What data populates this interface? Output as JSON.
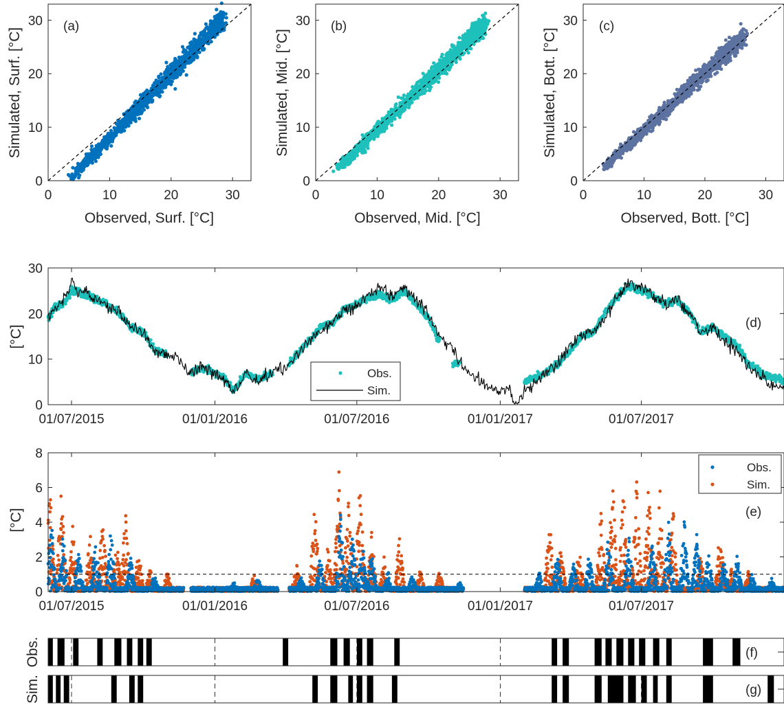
{
  "colors": {
    "surf": "#0072bd",
    "mid": "#1ec0bb",
    "bott": "#5c72a0",
    "obs_blue": "#0072bd",
    "sim_orange": "#d95319",
    "sim_line": "#000000",
    "axis": "#262626"
  },
  "chart_data": [
    {
      "id": "a",
      "type": "scatter",
      "panel_label": "(a)",
      "xlabel": "Observed, Surf. [°C]",
      "ylabel": "Simulated, Surf. [°C]",
      "xlim": [
        0,
        33
      ],
      "ylim": [
        0,
        33
      ],
      "xticks": [
        "0",
        "10",
        "20",
        "30"
      ],
      "yticks": [
        "0",
        "10",
        "20",
        "30"
      ],
      "reference_line": "1:1 dashed",
      "cloud": {
        "x_start": 3.5,
        "x_end": 28.7,
        "y_start": 0.3,
        "y_end": 30.5,
        "spread_low": 1.2,
        "spread_high": 3.0
      }
    },
    {
      "id": "b",
      "type": "scatter",
      "panel_label": "(b)",
      "xlabel": "Observed, Mid. [°C]",
      "ylabel": "Simulated, Mid. [°C]",
      "xlim": [
        0,
        33
      ],
      "ylim": [
        0,
        33
      ],
      "xticks": [
        "0",
        "10",
        "20",
        "30"
      ],
      "yticks": [
        "0",
        "10",
        "20",
        "30"
      ],
      "reference_line": "1:1 dashed",
      "cloud": {
        "x_start": 3.5,
        "x_end": 27.8,
        "y_start": 2.0,
        "y_end": 29.5,
        "spread_low": 1.2,
        "spread_high": 2.8
      }
    },
    {
      "id": "c",
      "type": "scatter",
      "panel_label": "(c)",
      "xlabel": "Observed, Bott. [°C]",
      "ylabel": "Simulated, Bott. [°C]",
      "xlim": [
        0,
        33
      ],
      "ylim": [
        0,
        33
      ],
      "xticks": [
        "0",
        "10",
        "20",
        "30"
      ],
      "yticks": [
        "0",
        "10",
        "20",
        "30"
      ],
      "reference_line": "1:1 dashed",
      "cloud": {
        "x_start": 3.5,
        "x_end": 26.5,
        "y_start": 2.5,
        "y_end": 27.0,
        "spread_low": 1.0,
        "spread_high": 2.5
      }
    },
    {
      "id": "d",
      "type": "line",
      "panel_label": "(d)",
      "ylabel": "[°C]",
      "ylim": [
        0,
        30
      ],
      "yticks": [
        "0",
        "10",
        "20",
        "30"
      ],
      "x_range": [
        "2015-06-01",
        "2017-12-31"
      ],
      "xticks": [
        "01/07/2015",
        "01/01/2016",
        "01/07/2016",
        "01/01/2017",
        "01/07/2017"
      ],
      "legend": [
        "Obs.",
        "Sim."
      ],
      "sim": [
        [
          "2015-06-01",
          19
        ],
        [
          "2015-06-10",
          21
        ],
        [
          "2015-06-20",
          23
        ],
        [
          "2015-07-01",
          27
        ],
        [
          "2015-07-10",
          25
        ],
        [
          "2015-07-20",
          25
        ],
        [
          "2015-08-01",
          23
        ],
        [
          "2015-08-15",
          22
        ],
        [
          "2015-09-01",
          20
        ],
        [
          "2015-09-15",
          17
        ],
        [
          "2015-10-01",
          16
        ],
        [
          "2015-10-15",
          12
        ],
        [
          "2015-11-01",
          11
        ],
        [
          "2015-11-15",
          10
        ],
        [
          "2015-12-01",
          7
        ],
        [
          "2015-12-15",
          8
        ],
        [
          "2016-01-01",
          7
        ],
        [
          "2016-01-15",
          5
        ],
        [
          "2016-01-25",
          2.5
        ],
        [
          "2016-02-10",
          7
        ],
        [
          "2016-02-25",
          5
        ],
        [
          "2016-03-15",
          7
        ],
        [
          "2016-04-01",
          8
        ],
        [
          "2016-04-15",
          11
        ],
        [
          "2016-05-01",
          14
        ],
        [
          "2016-05-15",
          16
        ],
        [
          "2016-06-01",
          18
        ],
        [
          "2016-06-15",
          21
        ],
        [
          "2016-07-01",
          22
        ],
        [
          "2016-07-15",
          24
        ],
        [
          "2016-08-01",
          26
        ],
        [
          "2016-08-15",
          24
        ],
        [
          "2016-09-01",
          26
        ],
        [
          "2016-09-15",
          23
        ],
        [
          "2016-10-01",
          20
        ],
        [
          "2016-10-15",
          15
        ],
        [
          "2016-11-01",
          12
        ],
        [
          "2016-11-15",
          8
        ],
        [
          "2016-12-01",
          6
        ],
        [
          "2016-12-15",
          4
        ],
        [
          "2017-01-01",
          3
        ],
        [
          "2017-01-10",
          4
        ],
        [
          "2017-01-20",
          0.3
        ],
        [
          "2017-02-01",
          3
        ],
        [
          "2017-02-15",
          5
        ],
        [
          "2017-03-01",
          7
        ],
        [
          "2017-03-15",
          9
        ],
        [
          "2017-04-01",
          13
        ],
        [
          "2017-04-15",
          15
        ],
        [
          "2017-05-01",
          16
        ],
        [
          "2017-05-15",
          19
        ],
        [
          "2017-06-01",
          24
        ],
        [
          "2017-06-15",
          27
        ],
        [
          "2017-07-01",
          26
        ],
        [
          "2017-07-15",
          24
        ],
        [
          "2017-08-01",
          22
        ],
        [
          "2017-08-15",
          23
        ],
        [
          "2017-09-01",
          20
        ],
        [
          "2017-09-15",
          16
        ],
        [
          "2017-10-01",
          17
        ],
        [
          "2017-10-15",
          14
        ],
        [
          "2017-11-01",
          12
        ],
        [
          "2017-11-15",
          8
        ],
        [
          "2017-12-01",
          6
        ],
        [
          "2017-12-15",
          4
        ],
        [
          "2017-12-31",
          4
        ]
      ],
      "obs_segments": [
        [
          [
            "2015-06-01",
            19
          ],
          [
            "2015-06-10",
            21.5
          ],
          [
            "2015-06-20",
            22
          ],
          [
            "2015-07-01",
            25
          ],
          [
            "2015-07-10",
            25
          ],
          [
            "2015-07-20",
            24
          ],
          [
            "2015-08-01",
            23
          ],
          [
            "2015-08-15",
            22
          ],
          [
            "2015-09-01",
            20
          ],
          [
            "2015-09-15",
            17
          ],
          [
            "2015-10-01",
            16
          ],
          [
            "2015-10-15",
            12
          ],
          [
            "2015-11-01",
            11
          ]
        ],
        [
          [
            "2015-12-01",
            7
          ],
          [
            "2015-12-15",
            8
          ],
          [
            "2016-01-01",
            7
          ],
          [
            "2016-01-15",
            5.5
          ],
          [
            "2016-01-25",
            3
          ],
          [
            "2016-02-10",
            7
          ],
          [
            "2016-02-25",
            5.5
          ],
          [
            "2016-03-15",
            7
          ]
        ],
        [
          [
            "2016-04-05",
            9
          ],
          [
            "2016-04-15",
            11
          ],
          [
            "2016-05-01",
            14
          ],
          [
            "2016-05-15",
            17
          ],
          [
            "2016-06-01",
            18
          ],
          [
            "2016-06-15",
            21
          ],
          [
            "2016-07-01",
            22
          ],
          [
            "2016-07-15",
            23.5
          ],
          [
            "2016-08-01",
            24
          ],
          [
            "2016-08-15",
            23
          ],
          [
            "2016-09-01",
            25
          ],
          [
            "2016-09-15",
            22
          ],
          [
            "2016-10-01",
            19
          ],
          [
            "2016-10-15",
            14
          ]
        ],
        [
          [
            "2016-11-01",
            9
          ],
          [
            "2016-11-10",
            9
          ]
        ],
        [
          [
            "2017-02-01",
            5
          ],
          [
            "2017-02-15",
            6
          ],
          [
            "2017-03-01",
            7
          ],
          [
            "2017-03-15",
            9
          ],
          [
            "2017-04-01",
            12
          ],
          [
            "2017-04-15",
            15
          ],
          [
            "2017-05-01",
            16
          ],
          [
            "2017-05-15",
            20
          ],
          [
            "2017-06-01",
            24
          ],
          [
            "2017-06-15",
            26
          ],
          [
            "2017-07-01",
            25
          ],
          [
            "2017-07-15",
            24
          ],
          [
            "2017-08-01",
            22
          ],
          [
            "2017-08-15",
            23
          ],
          [
            "2017-09-01",
            20
          ],
          [
            "2017-09-15",
            16
          ],
          [
            "2017-10-01",
            17
          ],
          [
            "2017-10-15",
            15
          ],
          [
            "2017-11-01",
            13
          ],
          [
            "2017-11-15",
            9
          ],
          [
            "2017-12-01",
            7
          ],
          [
            "2017-12-15",
            6
          ],
          [
            "2017-12-31",
            5.5
          ]
        ]
      ]
    },
    {
      "id": "e",
      "type": "scatter",
      "panel_label": "(e)",
      "ylabel": "[°C]",
      "ylim": [
        0,
        8
      ],
      "yticks": [
        "0",
        "2",
        "4",
        "6",
        "8"
      ],
      "x_range": [
        "2015-06-01",
        "2017-12-31"
      ],
      "xticks": [
        "01/07/2015",
        "01/01/2016",
        "01/07/2016",
        "01/01/2017",
        "01/07/2017"
      ],
      "legend": [
        "Obs.",
        "Sim."
      ],
      "threshold": 1,
      "data_gaps": [
        [
          "2015-11-22",
          "2015-12-01"
        ],
        [
          "2016-03-22",
          "2016-04-05"
        ],
        [
          "2016-11-15",
          "2017-02-01"
        ]
      ],
      "sim_peaks": [
        [
          "2015-06-03",
          6.3
        ],
        [
          "2015-06-18",
          6.4
        ],
        [
          "2015-07-03",
          4.2
        ],
        [
          "2015-07-25",
          3.5
        ],
        [
          "2015-08-10",
          4.5
        ],
        [
          "2015-08-28",
          3.0
        ],
        [
          "2015-09-08",
          5.0
        ],
        [
          "2015-09-25",
          2.5
        ],
        [
          "2015-10-10",
          1.5
        ],
        [
          "2015-11-01",
          1.2
        ],
        [
          "2016-02-20",
          1.0
        ],
        [
          "2016-04-15",
          1.6
        ],
        [
          "2016-05-08",
          5.4
        ],
        [
          "2016-05-25",
          2.8
        ],
        [
          "2016-06-08",
          7.2
        ],
        [
          "2016-06-20",
          6.5
        ],
        [
          "2016-07-05",
          6.8
        ],
        [
          "2016-07-20",
          3.6
        ],
        [
          "2016-08-05",
          2.0
        ],
        [
          "2016-08-25",
          3.6
        ],
        [
          "2016-09-20",
          1.4
        ],
        [
          "2016-10-15",
          1.2
        ],
        [
          "2017-03-05",
          4.8
        ],
        [
          "2017-03-20",
          2.8
        ],
        [
          "2017-04-12",
          2.6
        ],
        [
          "2017-05-10",
          5.0
        ],
        [
          "2017-05-25",
          6.6
        ],
        [
          "2017-06-08",
          6.2
        ],
        [
          "2017-06-25",
          6.5
        ],
        [
          "2017-07-10",
          6.3
        ],
        [
          "2017-07-25",
          6.0
        ],
        [
          "2017-08-10",
          5.6
        ],
        [
          "2017-09-15",
          2.2
        ],
        [
          "2017-10-10",
          4.0
        ],
        [
          "2017-10-25",
          1.6
        ],
        [
          "2017-11-15",
          1.2
        ]
      ],
      "obs_peaks": [
        [
          "2015-06-05",
          4.3
        ],
        [
          "2015-06-20",
          3.5
        ],
        [
          "2015-07-10",
          2.5
        ],
        [
          "2015-08-01",
          3.2
        ],
        [
          "2015-08-20",
          4.0
        ],
        [
          "2015-09-15",
          2.0
        ],
        [
          "2015-10-15",
          1.0
        ],
        [
          "2016-01-25",
          0.6
        ],
        [
          "2016-02-25",
          0.8
        ],
        [
          "2016-04-20",
          1.0
        ],
        [
          "2016-05-15",
          2.0
        ],
        [
          "2016-06-10",
          4.5
        ],
        [
          "2016-06-25",
          3.5
        ],
        [
          "2016-07-08",
          3.0
        ],
        [
          "2016-07-20",
          2.5
        ],
        [
          "2016-08-10",
          1.2
        ],
        [
          "2016-09-10",
          1.0
        ],
        [
          "2016-11-10",
          0.6
        ],
        [
          "2017-02-20",
          1.2
        ],
        [
          "2017-03-15",
          2.5
        ],
        [
          "2017-04-05",
          1.8
        ],
        [
          "2017-04-25",
          2.2
        ],
        [
          "2017-05-20",
          3.4
        ],
        [
          "2017-06-15",
          3.3
        ],
        [
          "2017-07-15",
          3.0
        ],
        [
          "2017-08-05",
          4.0
        ],
        [
          "2017-08-25",
          4.2
        ],
        [
          "2017-09-10",
          3.5
        ],
        [
          "2017-09-25",
          2.4
        ],
        [
          "2017-10-15",
          2.1
        ],
        [
          "2017-11-01",
          2.3
        ],
        [
          "2017-11-20",
          1.2
        ],
        [
          "2017-12-15",
          0.8
        ]
      ]
    },
    {
      "id": "f",
      "type": "event_raster",
      "panel_label": "(f)",
      "ylabel": "Obs.",
      "x_range": [
        "2015-06-01",
        "2017-12-31"
      ],
      "events": [
        [
          "2015-06-01",
          "2015-06-07"
        ],
        [
          "2015-06-13",
          "2015-06-22"
        ],
        [
          "2015-07-03",
          "2015-07-10"
        ],
        [
          "2015-08-03",
          "2015-08-10"
        ],
        [
          "2015-08-25",
          "2015-09-03"
        ],
        [
          "2015-09-10",
          "2015-09-17"
        ],
        [
          "2015-09-24",
          "2015-10-01"
        ],
        [
          "2015-10-05",
          "2015-10-12"
        ],
        [
          "2016-03-28",
          "2016-04-04"
        ],
        [
          "2016-05-28",
          "2016-06-06"
        ],
        [
          "2016-06-14",
          "2016-06-22"
        ],
        [
          "2016-07-01",
          "2016-07-08"
        ],
        [
          "2016-07-14",
          "2016-07-22"
        ],
        [
          "2016-08-18",
          "2016-08-25"
        ],
        [
          "2017-03-08",
          "2017-03-15"
        ],
        [
          "2017-03-22",
          "2017-03-30"
        ],
        [
          "2017-05-02",
          "2017-05-11"
        ],
        [
          "2017-05-16",
          "2017-05-24"
        ],
        [
          "2017-05-30",
          "2017-06-08"
        ],
        [
          "2017-06-14",
          "2017-06-22"
        ],
        [
          "2017-06-28",
          "2017-07-06"
        ],
        [
          "2017-07-16",
          "2017-07-24"
        ],
        [
          "2017-08-02",
          "2017-08-09"
        ],
        [
          "2017-09-18",
          "2017-10-01"
        ],
        [
          "2017-10-26",
          "2017-11-05"
        ]
      ]
    },
    {
      "id": "g",
      "type": "event_raster",
      "panel_label": "(g)",
      "ylabel": "Sim.",
      "x_range": [
        "2015-06-01",
        "2017-12-31"
      ],
      "events": [
        [
          "2015-06-01",
          "2015-06-07"
        ],
        [
          "2015-06-11",
          "2015-06-17"
        ],
        [
          "2015-06-21",
          "2015-06-28"
        ],
        [
          "2015-08-21",
          "2015-08-28"
        ],
        [
          "2015-09-13",
          "2015-09-20"
        ],
        [
          "2015-09-24",
          "2015-10-01"
        ],
        [
          "2016-05-05",
          "2016-05-12"
        ],
        [
          "2016-05-28",
          "2016-06-06"
        ],
        [
          "2016-06-20",
          "2016-06-26"
        ],
        [
          "2016-07-01",
          "2016-07-08"
        ],
        [
          "2016-07-14",
          "2016-07-22"
        ],
        [
          "2016-08-15",
          "2016-08-22"
        ],
        [
          "2017-03-08",
          "2017-03-15"
        ],
        [
          "2017-03-22",
          "2017-03-30"
        ],
        [
          "2017-05-02",
          "2017-05-11"
        ],
        [
          "2017-05-19",
          "2017-06-08"
        ],
        [
          "2017-06-14",
          "2017-06-24"
        ],
        [
          "2017-07-01",
          "2017-07-08"
        ],
        [
          "2017-07-16",
          "2017-07-22"
        ],
        [
          "2017-08-02",
          "2017-08-09"
        ],
        [
          "2017-09-18",
          "2017-10-01"
        ],
        [
          "2017-12-10",
          "2017-12-18"
        ]
      ]
    }
  ]
}
